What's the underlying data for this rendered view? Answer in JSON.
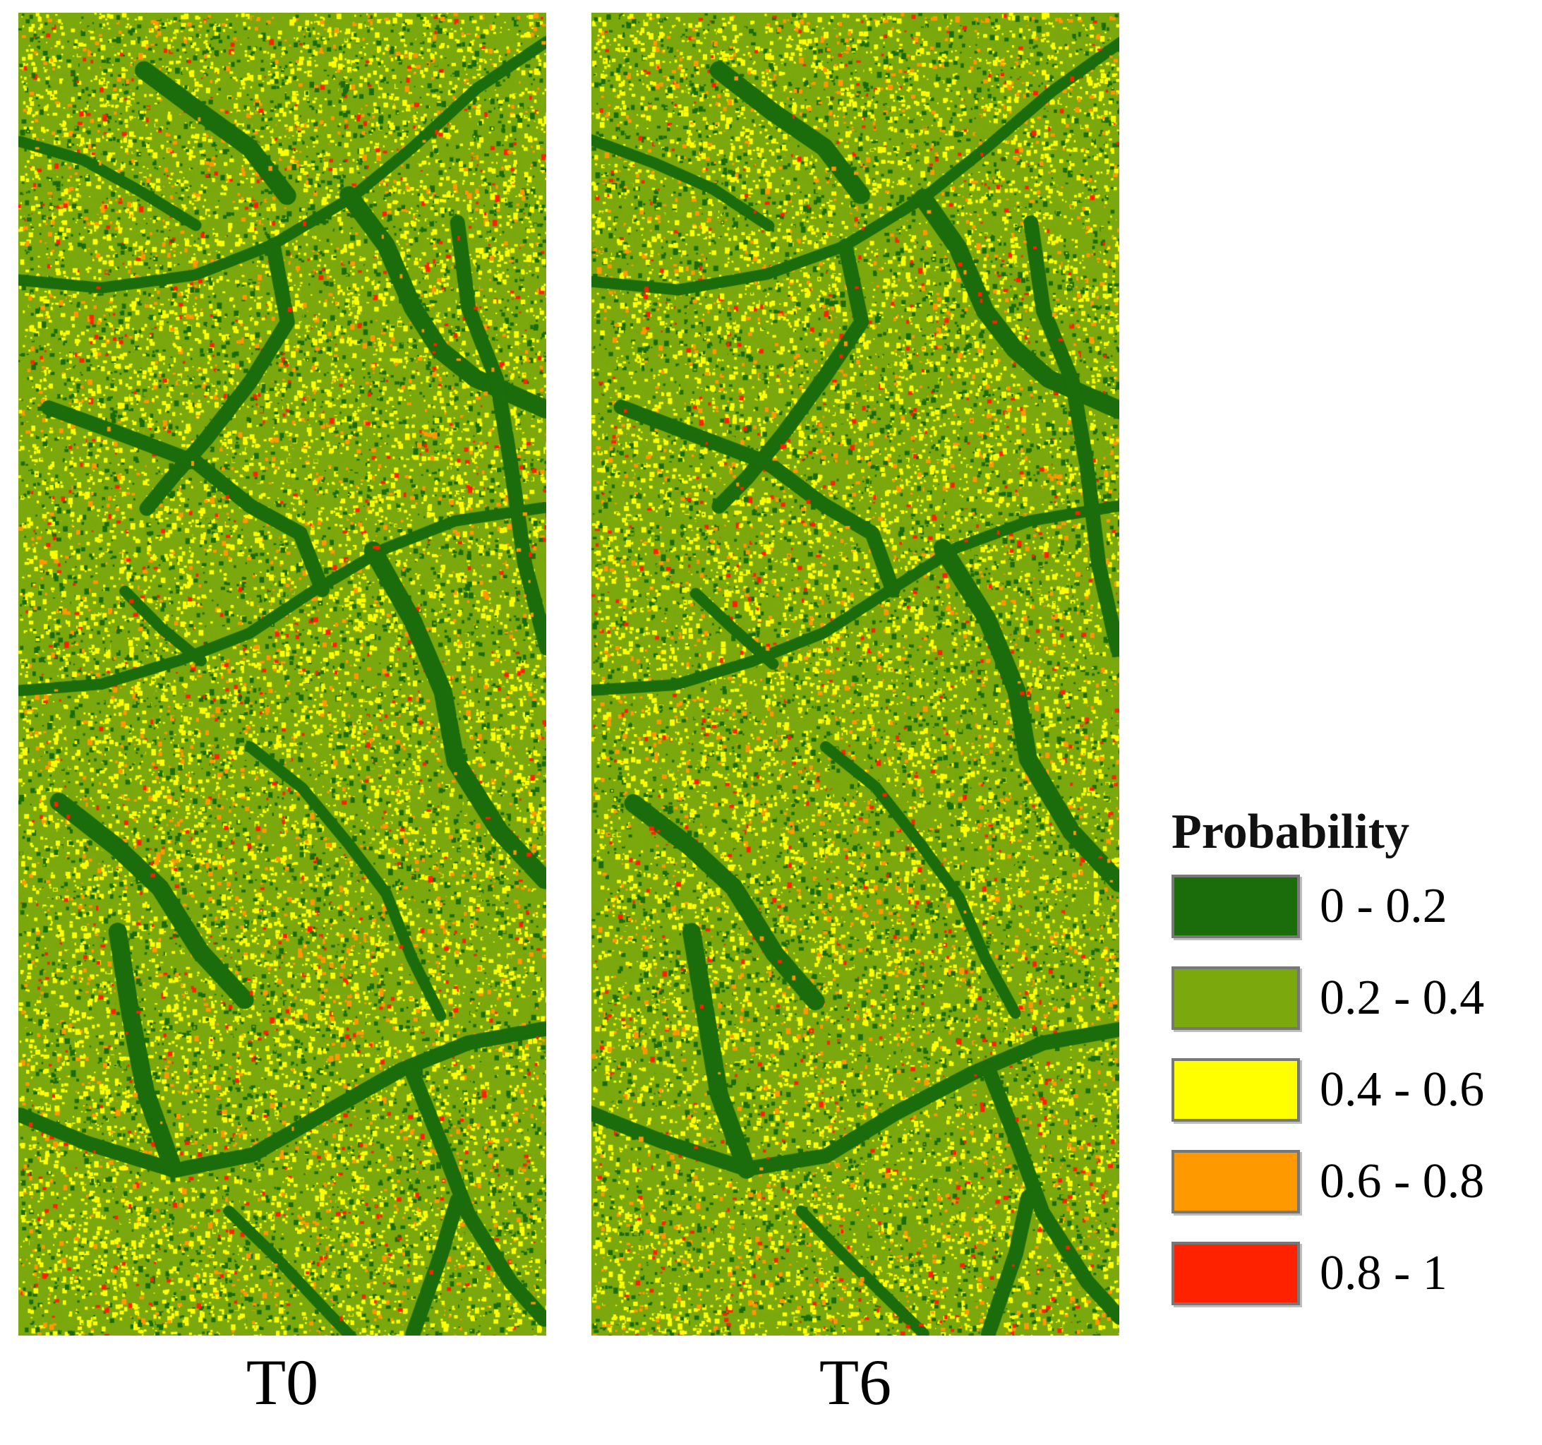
{
  "panels": [
    {
      "id": "t0",
      "label": "T0"
    },
    {
      "id": "t6",
      "label": "T6"
    }
  ],
  "legend": {
    "title": "Probability",
    "items": [
      {
        "label": "0 - 0.2",
        "color": "#1b6d0b"
      },
      {
        "label": "0.2 - 0.4",
        "color": "#7aa80d"
      },
      {
        "label": "0.4 - 0.6",
        "color": "#ffff00"
      },
      {
        "label": "0.6 - 0.8",
        "color": "#ff9900"
      },
      {
        "label": "0.8 - 1",
        "color": "#ff2200"
      }
    ]
  }
}
